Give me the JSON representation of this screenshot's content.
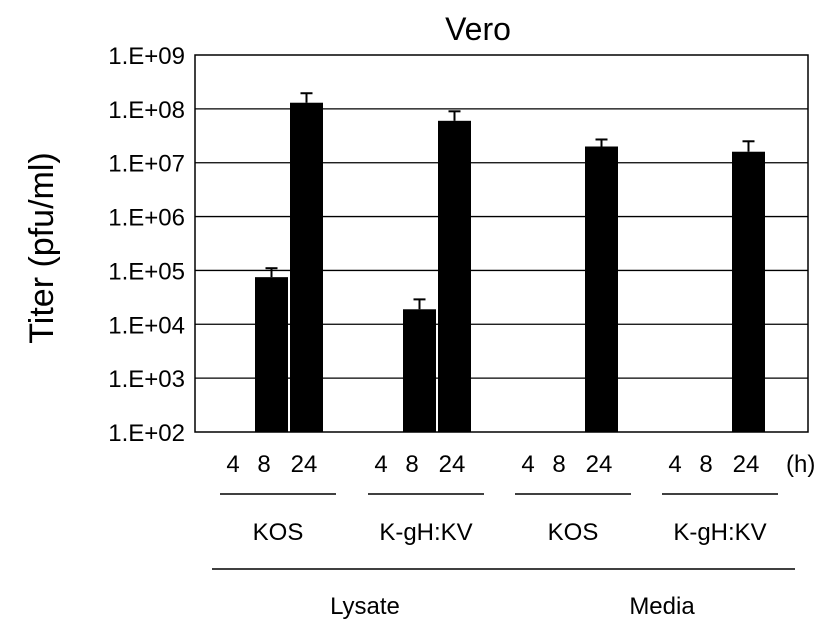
{
  "chart_data": {
    "type": "bar",
    "title": "Vero",
    "ylabel": "Titer (pfu/ml)",
    "xlabel": "",
    "yscale": "log",
    "ylim": [
      100,
      1000000000
    ],
    "yticks": [
      "1.E+02",
      "1.E+03",
      "1.E+04",
      "1.E+05",
      "1.E+06",
      "1.E+07",
      "1.E+08",
      "1.E+09"
    ],
    "time_unit": "(h)",
    "grid": true,
    "groups": [
      {
        "virus": "KOS",
        "sample": "Lysate",
        "times": [
          "4",
          "8",
          "24"
        ],
        "values": [
          null,
          75000,
          130000000
        ],
        "errors": [
          null,
          35000,
          65000000
        ]
      },
      {
        "virus": "K-gH:KV",
        "sample": "Lysate",
        "times": [
          "4",
          "8",
          "24"
        ],
        "values": [
          null,
          19000,
          60000000
        ],
        "errors": [
          null,
          10000,
          30000000
        ]
      },
      {
        "virus": "KOS",
        "sample": "Media",
        "times": [
          "4",
          "8",
          "24"
        ],
        "values": [
          null,
          null,
          20000000
        ],
        "errors": [
          null,
          null,
          7000000
        ]
      },
      {
        "virus": "K-gH:KV",
        "sample": "Media",
        "times": [
          "4",
          "8",
          "24"
        ],
        "values": [
          null,
          null,
          16000000
        ],
        "errors": [
          null,
          null,
          9000000
        ]
      }
    ],
    "samples": [
      "Lysate",
      "Media"
    ]
  }
}
